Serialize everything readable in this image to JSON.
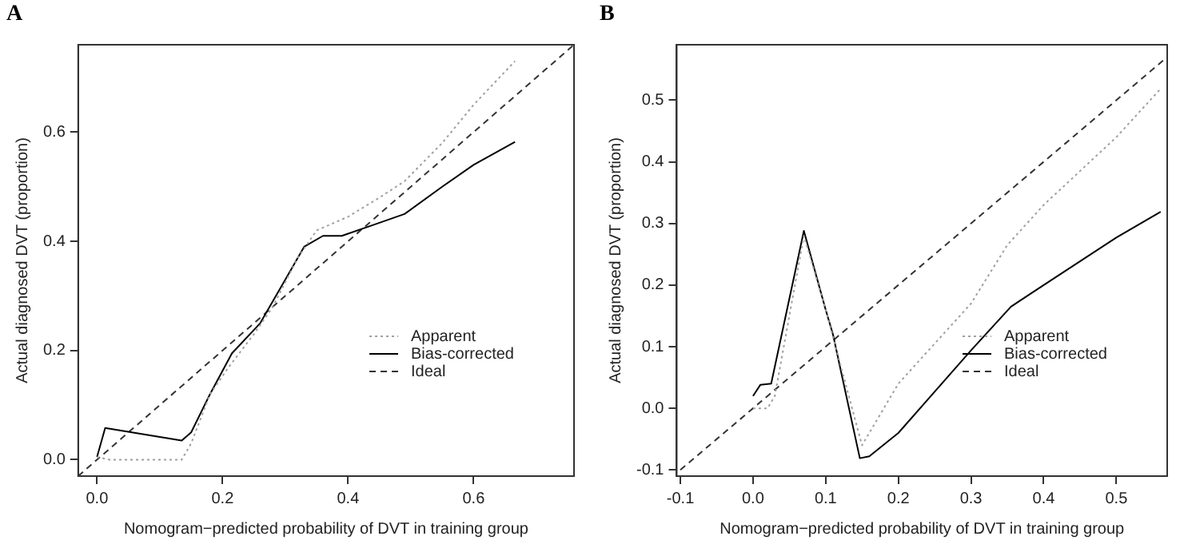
{
  "chart_data": [
    {
      "type": "line",
      "title": "A",
      "xlabel": "Nomogram−predicted probability of DVT in training group",
      "ylabel": "Actual diagnosed DVT (proportion)",
      "xlim": [
        -0.03,
        0.76
      ],
      "ylim": [
        -0.03,
        0.76
      ],
      "xticks": [
        {
          "value": 0,
          "label": "0.0"
        },
        {
          "value": 0.2,
          "label": "0.2"
        },
        {
          "value": 0.4,
          "label": "0.4"
        },
        {
          "value": 0.6,
          "label": "0.6"
        }
      ],
      "yticks": [
        {
          "value": 0,
          "label": "0.0"
        },
        {
          "value": 0.2,
          "label": "0.2"
        },
        {
          "value": 0.4,
          "label": "0.4"
        },
        {
          "value": 0.6,
          "label": "0.6"
        }
      ],
      "grid": false,
      "legend": "bottom right",
      "marker": "none",
      "series": [
        {
          "name": "Apparent",
          "color": "#a0a0a0",
          "line_style": "dotted",
          "x": [
            0,
            0.02,
            0.135,
            0.15,
            0.18,
            0.21,
            0.25,
            0.28,
            0.32,
            0.35,
            0.4,
            0.45,
            0.49,
            0.55,
            0.6,
            0.666
          ],
          "values": [
            0.005,
            0,
            0,
            0.03,
            0.12,
            0.17,
            0.23,
            0.28,
            0.37,
            0.42,
            0.445,
            0.48,
            0.51,
            0.58,
            0.65,
            0.73
          ]
        },
        {
          "name": "Bias-corrected",
          "color": "#000000",
          "line_style": "solid",
          "x": [
            0,
            0.013,
            0.135,
            0.15,
            0.18,
            0.215,
            0.26,
            0.3,
            0.33,
            0.36,
            0.39,
            0.44,
            0.49,
            0.55,
            0.6,
            0.666
          ],
          "values": [
            0.005,
            0.058,
            0.035,
            0.05,
            0.12,
            0.195,
            0.25,
            0.33,
            0.39,
            0.41,
            0.41,
            0.43,
            0.45,
            0.5,
            0.54,
            0.582
          ]
        },
        {
          "name": "Ideal",
          "color": "#333333",
          "line_style": "dashed",
          "x": [
            -0.03,
            0.76
          ],
          "values": [
            -0.03,
            0.76
          ]
        }
      ]
    },
    {
      "type": "line",
      "title": "B",
      "xlabel": "Nomogram−predicted probability of DVT in training group",
      "ylabel": "Actual diagnosed DVT (proportion)",
      "xlim": [
        -0.105,
        0.57
      ],
      "ylim": [
        -0.11,
        0.59
      ],
      "xticks": [
        {
          "value": -0.1,
          "label": "-0.1"
        },
        {
          "value": 0,
          "label": "0.0"
        },
        {
          "value": 0.1,
          "label": "0.1"
        },
        {
          "value": 0.2,
          "label": "0.2"
        },
        {
          "value": 0.3,
          "label": "0.3"
        },
        {
          "value": 0.4,
          "label": "0.4"
        },
        {
          "value": 0.5,
          "label": "0.5"
        }
      ],
      "yticks": [
        {
          "value": -0.1,
          "label": "-0.1"
        },
        {
          "value": 0,
          "label": "0.0"
        },
        {
          "value": 0.1,
          "label": "0.1"
        },
        {
          "value": 0.2,
          "label": "0.2"
        },
        {
          "value": 0.3,
          "label": "0.3"
        },
        {
          "value": 0.4,
          "label": "0.4"
        },
        {
          "value": 0.5,
          "label": "0.5"
        }
      ],
      "grid": false,
      "legend": "bottom right",
      "marker": "none",
      "series": [
        {
          "name": "Apparent",
          "color": "#a0a0a0",
          "line_style": "dotted",
          "x": [
            0,
            0.02,
            0.03,
            0.07,
            0.1,
            0.15,
            0.2,
            0.3,
            0.35,
            0.4,
            0.5,
            0.562
          ],
          "values": [
            0,
            0,
            0.02,
            0.28,
            0.16,
            -0.06,
            0.04,
            0.17,
            0.265,
            0.33,
            0.44,
            0.52
          ]
        },
        {
          "name": "Bias-corrected",
          "color": "#000000",
          "line_style": "solid",
          "x": [
            0,
            0.01,
            0.025,
            0.07,
            0.1,
            0.11,
            0.147,
            0.16,
            0.2,
            0.3,
            0.355,
            0.4,
            0.5,
            0.561
          ],
          "values": [
            0.02,
            0.038,
            0.04,
            0.288,
            0.16,
            0.12,
            -0.081,
            -0.078,
            -0.04,
            0.094,
            0.165,
            0.2,
            0.277,
            0.319
          ]
        },
        {
          "name": "Ideal",
          "color": "#333333",
          "line_style": "dashed",
          "x": [
            -0.1,
            0.57
          ],
          "values": [
            -0.1,
            0.57
          ]
        }
      ]
    }
  ]
}
